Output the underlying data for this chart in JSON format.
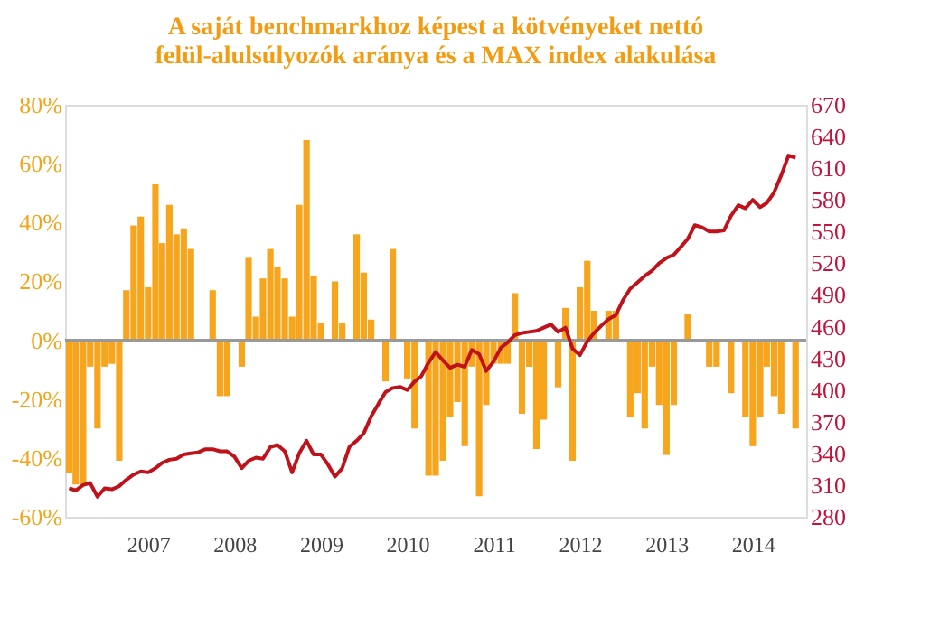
{
  "chart_data": {
    "type": "bar",
    "title": "A saját benchmarkhoz képest a kötvényeket nettó\nfelül-alulsúlyozók aránya és a MAX index alakulása",
    "x": [
      "2006-02",
      "2006-03",
      "2006-04",
      "2006-05",
      "2006-06",
      "2006-07",
      "2006-08",
      "2006-09",
      "2006-10",
      "2006-11",
      "2006-12",
      "2007-01",
      "2007-02",
      "2007-03",
      "2007-04",
      "2007-05",
      "2007-06",
      "2007-07",
      "2007-08",
      "2007-09",
      "2007-10",
      "2007-11",
      "2007-12",
      "2008-01",
      "2008-02",
      "2008-03",
      "2008-04",
      "2008-05",
      "2008-06",
      "2008-07",
      "2008-08",
      "2008-09",
      "2008-10",
      "2008-11",
      "2008-12",
      "2009-01",
      "2009-02",
      "2009-03",
      "2009-04",
      "2009-05",
      "2009-06",
      "2009-07",
      "2009-08",
      "2009-09",
      "2009-10",
      "2009-11",
      "2009-12",
      "2010-01",
      "2010-02",
      "2010-03",
      "2010-04",
      "2010-05",
      "2010-06",
      "2010-07",
      "2010-08",
      "2010-09",
      "2010-10",
      "2010-11",
      "2010-12",
      "2011-01",
      "2011-02",
      "2011-03",
      "2011-04",
      "2011-05",
      "2011-06",
      "2011-07",
      "2011-08",
      "2011-09",
      "2011-10",
      "2011-11",
      "2011-12",
      "2012-01",
      "2012-02",
      "2012-03",
      "2012-04",
      "2012-05",
      "2012-06",
      "2012-07",
      "2012-08",
      "2012-09",
      "2012-10",
      "2012-11",
      "2012-12",
      "2013-01",
      "2013-02",
      "2013-03",
      "2013-04",
      "2013-05",
      "2013-06",
      "2013-07",
      "2013-08",
      "2013-09",
      "2013-10",
      "2013-11",
      "2013-12",
      "2014-01",
      "2014-02",
      "2014-03",
      "2014-04",
      "2014-05",
      "2014-06",
      "2014-07"
    ],
    "series": [
      {
        "color": "#f7a51c",
        "values": [
          -45,
          -49,
          -49,
          -9,
          -30,
          -9,
          -8,
          -41,
          17,
          39,
          42,
          18,
          53,
          33,
          46,
          36,
          38,
          31,
          0,
          0,
          17,
          -19,
          -19,
          0,
          -9,
          28,
          8,
          21,
          31,
          25,
          21,
          8,
          46,
          68,
          22,
          6,
          0,
          20,
          6,
          0,
          36,
          23,
          7,
          0,
          -14,
          31,
          0,
          -13,
          -30,
          0,
          -46,
          -46,
          -41,
          -26,
          -21,
          -36,
          -9,
          -53,
          -22,
          -8,
          -8,
          -8,
          16,
          -25,
          -9,
          -37,
          -27,
          0,
          -16,
          11,
          -41,
          18,
          27,
          10,
          0,
          10,
          10,
          0,
          -26,
          -18,
          -30,
          -9,
          -22,
          -39,
          -22,
          0,
          9,
          0,
          0,
          -9,
          -9,
          0,
          -18,
          0,
          -26,
          -36,
          -26,
          -9,
          -19,
          -25,
          0,
          -30
        ]
      },
      {
        "type": "line",
        "axis": "y2",
        "color": "#c0121b",
        "values": [
          307,
          305,
          310,
          312,
          299,
          307,
          306,
          309,
          315,
          320,
          323,
          322,
          326,
          331,
          334,
          335,
          339,
          340,
          341,
          344,
          344,
          342,
          342,
          337,
          326,
          333,
          336,
          335,
          346,
          348,
          342,
          322,
          340,
          352,
          339,
          339,
          329,
          318,
          326,
          346,
          352,
          359,
          375,
          387,
          398,
          402,
          403,
          400,
          408,
          413,
          426,
          436,
          428,
          421,
          424,
          422,
          438,
          434,
          418,
          427,
          440,
          445,
          452,
          454,
          455,
          456,
          459,
          462,
          455,
          459,
          439,
          433,
          446,
          454,
          461,
          467,
          471,
          485,
          496,
          502,
          508,
          513,
          520,
          525,
          528,
          535,
          543,
          556,
          554,
          550,
          550,
          551,
          565,
          575,
          572,
          580,
          573,
          577,
          587,
          603,
          622,
          620
        ]
      }
    ],
    "xlim": [
      "2006-01-15",
      "2014-08-15"
    ],
    "xticks": [
      {
        "value": "2007",
        "label": "2007"
      },
      {
        "value": "2008",
        "label": "2008"
      },
      {
        "value": "2009",
        "label": "2009"
      },
      {
        "value": "2010",
        "label": "2010"
      },
      {
        "value": "2011",
        "label": "2011"
      },
      {
        "value": "2012",
        "label": "2012"
      },
      {
        "value": "2013",
        "label": "2013"
      },
      {
        "value": "2014",
        "label": "2014"
      }
    ],
    "ylim": [
      -60,
      80
    ],
    "yticks": [
      {
        "value": -60,
        "label": "-60%"
      },
      {
        "value": -40,
        "label": "-40%"
      },
      {
        "value": -20,
        "label": "-20%"
      },
      {
        "value": 0,
        "label": "0%"
      },
      {
        "value": 20,
        "label": "20%"
      },
      {
        "value": 40,
        "label": "40%"
      },
      {
        "value": 60,
        "label": "60%"
      },
      {
        "value": 80,
        "label": "80%"
      }
    ],
    "y2lim": [
      280,
      670
    ],
    "y2ticks": [
      280,
      310,
      340,
      370,
      400,
      430,
      460,
      490,
      520,
      550,
      580,
      610,
      640,
      670
    ],
    "ref_lines": [
      {
        "axis": "y",
        "value": 0,
        "color": "#999999"
      }
    ],
    "line_style": "solid",
    "marker": "none"
  }
}
